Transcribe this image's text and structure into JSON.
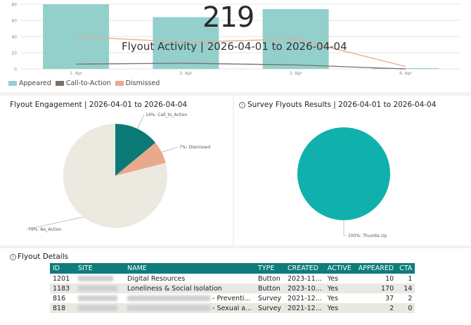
{
  "overlay": {
    "big_number": "219",
    "title": "Flyout Activity | 2026-04-01 to 2026-04-04"
  },
  "colors": {
    "appeared": "#93d0cc",
    "cta": "#7b6e68",
    "dismissed": "#e8a98c",
    "teal_dark": "#0b7a76",
    "no_action": "#ece9e1",
    "thumbs_up": "#10b1ac",
    "header_teal": "#0e7c7b"
  },
  "panels": {
    "engagement_title": "Flyout Engagement | 2026-04-01 to 2026-04-04",
    "survey_title": "Survey Flyouts Results | 2026-04-01 to 2026-04-04",
    "details_title": "Flyout Details"
  },
  "chart_data": [
    {
      "type": "bar",
      "title": "Flyout Activity | 2026-04-01 to 2026-04-04",
      "categories": [
        "1. Apr",
        "2. Apr",
        "3. Apr",
        "4. Apr"
      ],
      "ylim": [
        0,
        80
      ],
      "yticks": [
        0,
        20,
        40,
        60,
        80
      ],
      "series": [
        {
          "name": "Appeared",
          "kind": "bar",
          "values": [
            80,
            64,
            74,
            1
          ]
        },
        {
          "name": "Call-to-Action",
          "kind": "line",
          "values": [
            6,
            7,
            5,
            0
          ]
        },
        {
          "name": "Dismissed",
          "kind": "line",
          "values": [
            40,
            33,
            37,
            3
          ]
        }
      ],
      "legend": [
        "Appeared",
        "Call-to-Action",
        "Dismissed"
      ],
      "legend_position": "bottom-left"
    },
    {
      "type": "pie",
      "title": "Flyout Engagement | 2026-04-01 to 2026-04-04",
      "slices": [
        {
          "name": "Call_to_Action",
          "percent": 14,
          "label": "14%: Call_to_Action"
        },
        {
          "name": "Dismissed",
          "percent": 7,
          "label": "7%: Dismissed"
        },
        {
          "name": "No_Action",
          "percent": 79,
          "label": "79%: No_Action"
        }
      ]
    },
    {
      "type": "pie",
      "title": "Survey Flyouts Results | 2026-04-01 to 2026-04-04",
      "slices": [
        {
          "name": "Thumbs Up",
          "percent": 100,
          "label": "100%: Thumbs Up"
        }
      ]
    }
  ],
  "table": {
    "columns": [
      "ID",
      "SITE",
      "NAME",
      "CREATED",
      "ACTIVE",
      "APPEARED",
      "CTA"
    ],
    "type_column": "TYPE",
    "rows": [
      {
        "id": "1201",
        "name": "Digital Resources",
        "type": "Button",
        "created": "2023-11...",
        "active": "Yes",
        "appeared": "10",
        "cta": "1"
      },
      {
        "id": "1183",
        "name": "Loneliness & Social Isolation",
        "type": "Button",
        "created": "2023-10...",
        "active": "Yes",
        "appeared": "170",
        "cta": "14"
      },
      {
        "id": "816",
        "name": "- Preventi...",
        "type": "Survey",
        "created": "2021-12...",
        "active": "Yes",
        "appeared": "37",
        "cta": "2"
      },
      {
        "id": "818",
        "name": "- Sexual a...",
        "type": "Survey",
        "created": "2021-12...",
        "active": "Yes",
        "appeared": "2",
        "cta": "0"
      }
    ]
  }
}
